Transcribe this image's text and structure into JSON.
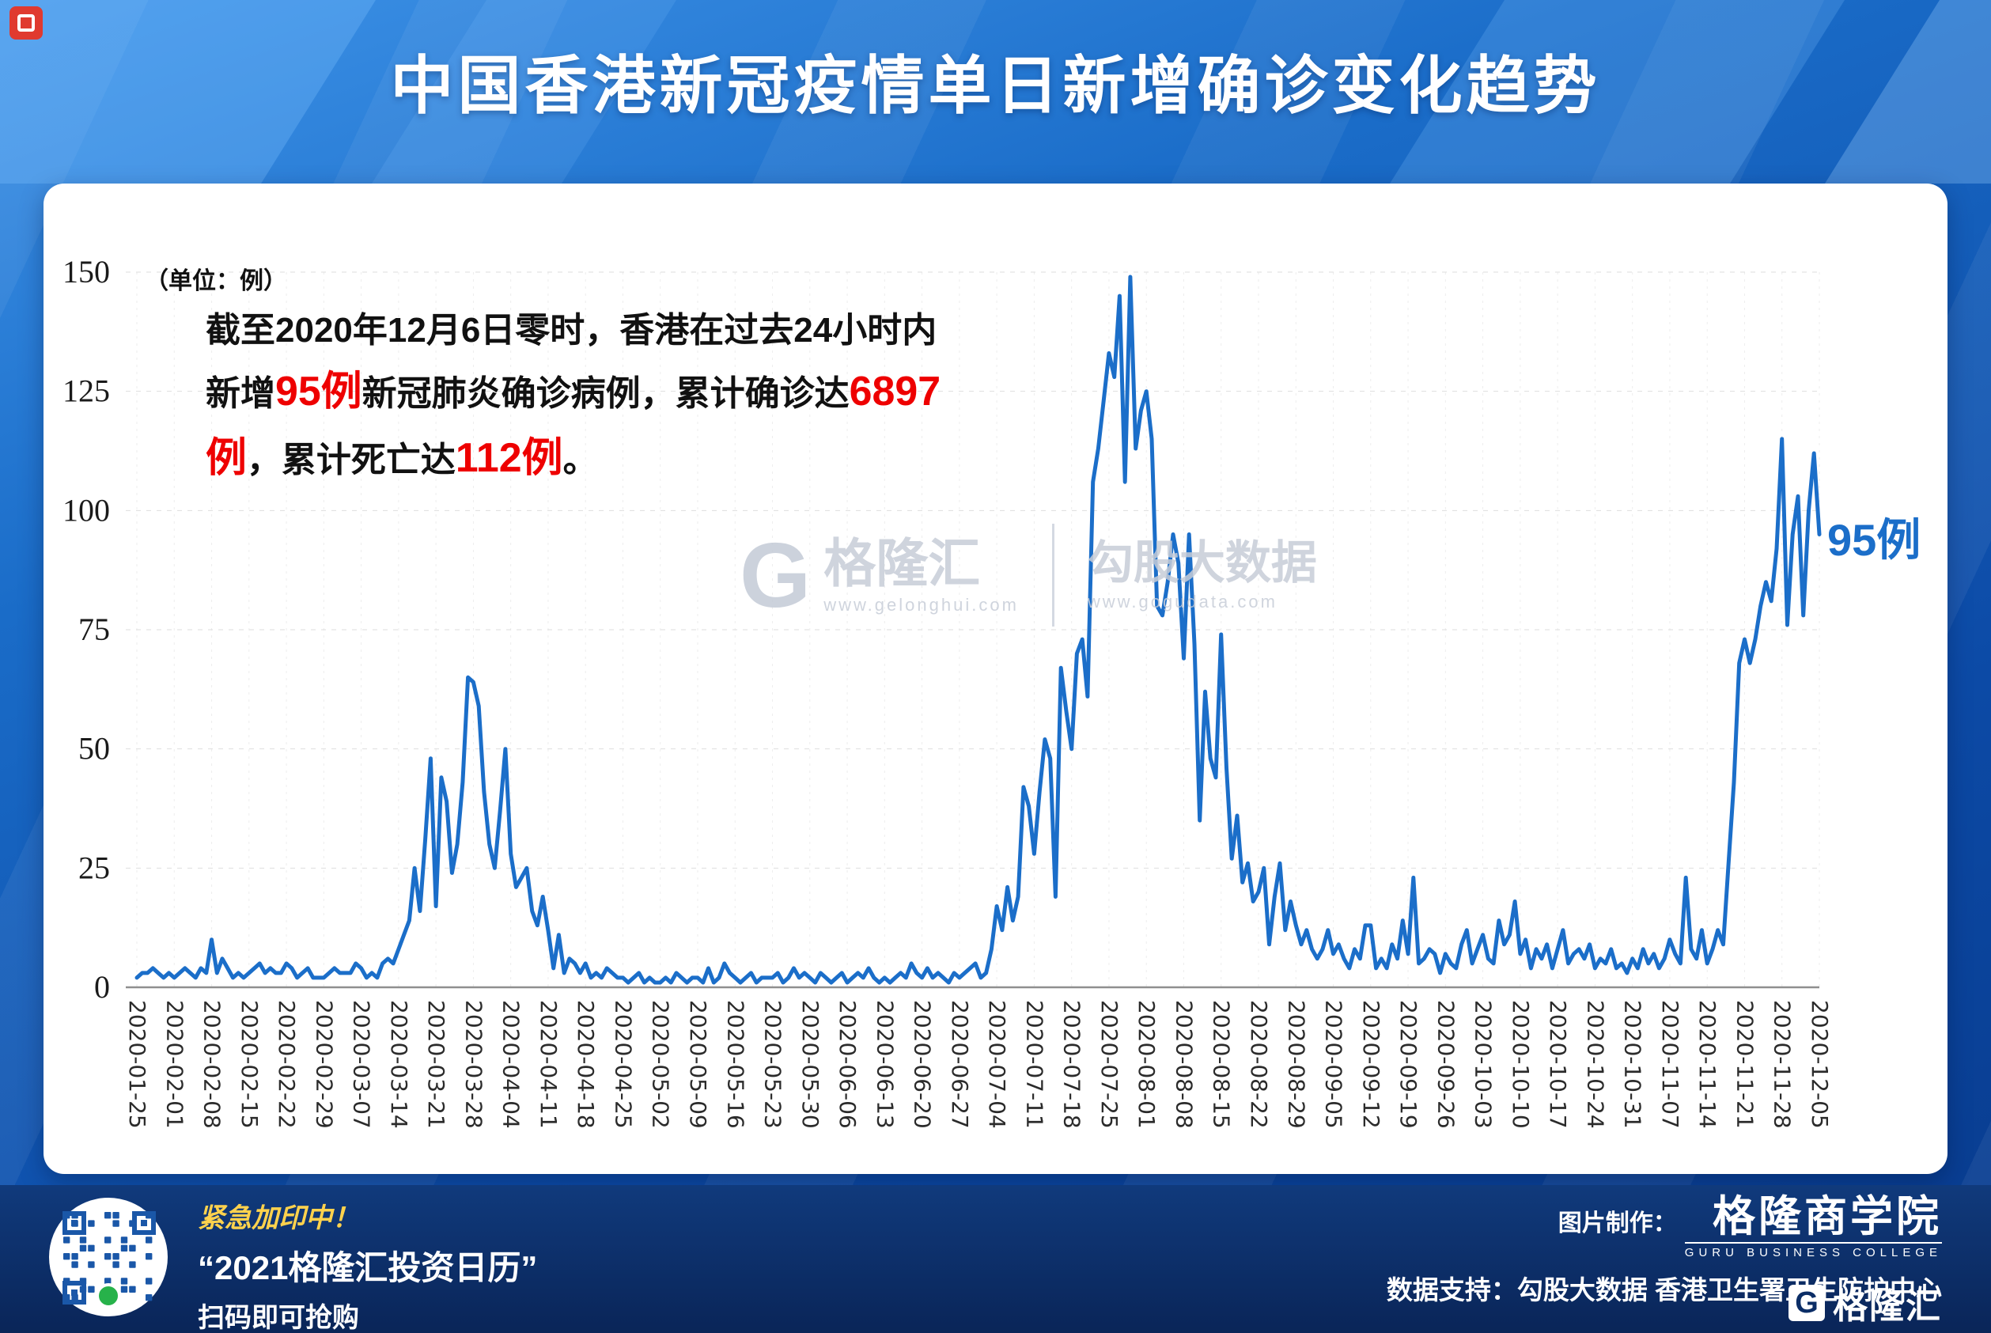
{
  "header": {
    "title": "中国香港新冠疫情单日新增确诊变化趋势"
  },
  "chart_data": {
    "type": "line",
    "title": "中国香港新冠疫情单日新增确诊变化趋势",
    "unit_label": "（单位：例）",
    "ylim": [
      0,
      150
    ],
    "yticks": [
      0,
      25,
      50,
      75,
      100,
      125,
      150
    ],
    "grid": true,
    "series_color": "#1b6ec9",
    "end_label": "95例",
    "categories": [
      "2020-01-25",
      "2020-02-01",
      "2020-02-08",
      "2020-02-15",
      "2020-02-22",
      "2020-02-29",
      "2020-03-07",
      "2020-03-14",
      "2020-03-21",
      "2020-03-28",
      "2020-04-04",
      "2020-04-11",
      "2020-04-18",
      "2020-04-25",
      "2020-05-02",
      "2020-05-09",
      "2020-05-16",
      "2020-05-23",
      "2020-05-30",
      "2020-06-06",
      "2020-06-13",
      "2020-06-20",
      "2020-06-27",
      "2020-07-04",
      "2020-07-11",
      "2020-07-18",
      "2020-07-25",
      "2020-08-01",
      "2020-08-08",
      "2020-08-15",
      "2020-08-22",
      "2020-08-29",
      "2020-09-05",
      "2020-09-12",
      "2020-09-19",
      "2020-09-26",
      "2020-10-03",
      "2020-10-10",
      "2020-10-17",
      "2020-10-24",
      "2020-10-31",
      "2020-11-07",
      "2020-11-14",
      "2020-11-21",
      "2020-11-28",
      "2020-12-05"
    ],
    "values": [
      2,
      3,
      3,
      4,
      3,
      2,
      3,
      2,
      3,
      4,
      3,
      2,
      4,
      3,
      10,
      3,
      6,
      4,
      2,
      3,
      2,
      3,
      4,
      5,
      3,
      4,
      3,
      3,
      5,
      4,
      2,
      3,
      4,
      2,
      2,
      2,
      3,
      4,
      3,
      3,
      3,
      5,
      4,
      2,
      3,
      2,
      5,
      6,
      5,
      8,
      11,
      14,
      25,
      16,
      31,
      48,
      17,
      44,
      39,
      24,
      30,
      43,
      65,
      64,
      59,
      41,
      30,
      25,
      37,
      50,
      28,
      21,
      23,
      25,
      16,
      13,
      19,
      12,
      4,
      11,
      3,
      6,
      5,
      3,
      5,
      2,
      3,
      2,
      4,
      3,
      2,
      2,
      1,
      2,
      3,
      1,
      2,
      1,
      1,
      2,
      1,
      3,
      2,
      1,
      2,
      2,
      1,
      4,
      1,
      2,
      5,
      3,
      2,
      1,
      2,
      3,
      1,
      2,
      2,
      2,
      3,
      1,
      2,
      4,
      2,
      3,
      2,
      1,
      3,
      2,
      1,
      2,
      3,
      1,
      2,
      3,
      2,
      4,
      2,
      1,
      2,
      1,
      2,
      3,
      2,
      5,
      3,
      2,
      4,
      2,
      3,
      2,
      1,
      3,
      2,
      3,
      4,
      5,
      2,
      3,
      8,
      17,
      12,
      21,
      14,
      19,
      42,
      38,
      28,
      41,
      52,
      48,
      19,
      67,
      58,
      50,
      70,
      73,
      61,
      106,
      113,
      123,
      133,
      128,
      145,
      106,
      149,
      113,
      121,
      125,
      115,
      80,
      78,
      85,
      95,
      89,
      69,
      95,
      72,
      35,
      62,
      48,
      44,
      74,
      46,
      27,
      36,
      22,
      26,
      18,
      20,
      25,
      9,
      19,
      26,
      12,
      18,
      13,
      9,
      12,
      8,
      6,
      8,
      12,
      7,
      9,
      6,
      4,
      8,
      6,
      13,
      13,
      4,
      6,
      4,
      9,
      6,
      14,
      7,
      23,
      5,
      6,
      8,
      7,
      3,
      7,
      5,
      4,
      9,
      12,
      5,
      8,
      11,
      6,
      5,
      14,
      9,
      11,
      18,
      7,
      10,
      4,
      8,
      6,
      9,
      4,
      8,
      12,
      5,
      7,
      8,
      6,
      9,
      4,
      6,
      5,
      8,
      4,
      5,
      3,
      6,
      4,
      8,
      5,
      7,
      4,
      6,
      10,
      7,
      5,
      23,
      8,
      6,
      12,
      5,
      8,
      12,
      9,
      26,
      43,
      68,
      73,
      68,
      73,
      80,
      85,
      81,
      92,
      115,
      76,
      95,
      103,
      78,
      100,
      112,
      95
    ]
  },
  "annotation": {
    "part1": "截至2020年12月6日零时，香港在过去24小时内新增",
    "red1": "95例",
    "part2": "新冠肺炎确诊病例，累计确诊达",
    "red2": "6897例",
    "part3": "，累计死亡达",
    "red3": "112例",
    "part4": "。"
  },
  "watermark": {
    "logo": "G",
    "brand1": "格隆汇",
    "url1": "www.gelonghui.com",
    "brand2": "勾股大数据",
    "url2": "www.gogudata.com"
  },
  "footer": {
    "promo1": "紧急加印中！",
    "promo2": "“2021格隆汇投资日历”",
    "promo3": "扫码即可抢购",
    "credit_label": "图片制作：",
    "credit_brand": "格隆商学院",
    "credit_sub": "GURU BUSINESS COLLEGE",
    "data_support": "数据支持：勾股大数据  香港卫生署卫生防护中心",
    "logo_g": "G",
    "logo_text": "格隆汇"
  }
}
